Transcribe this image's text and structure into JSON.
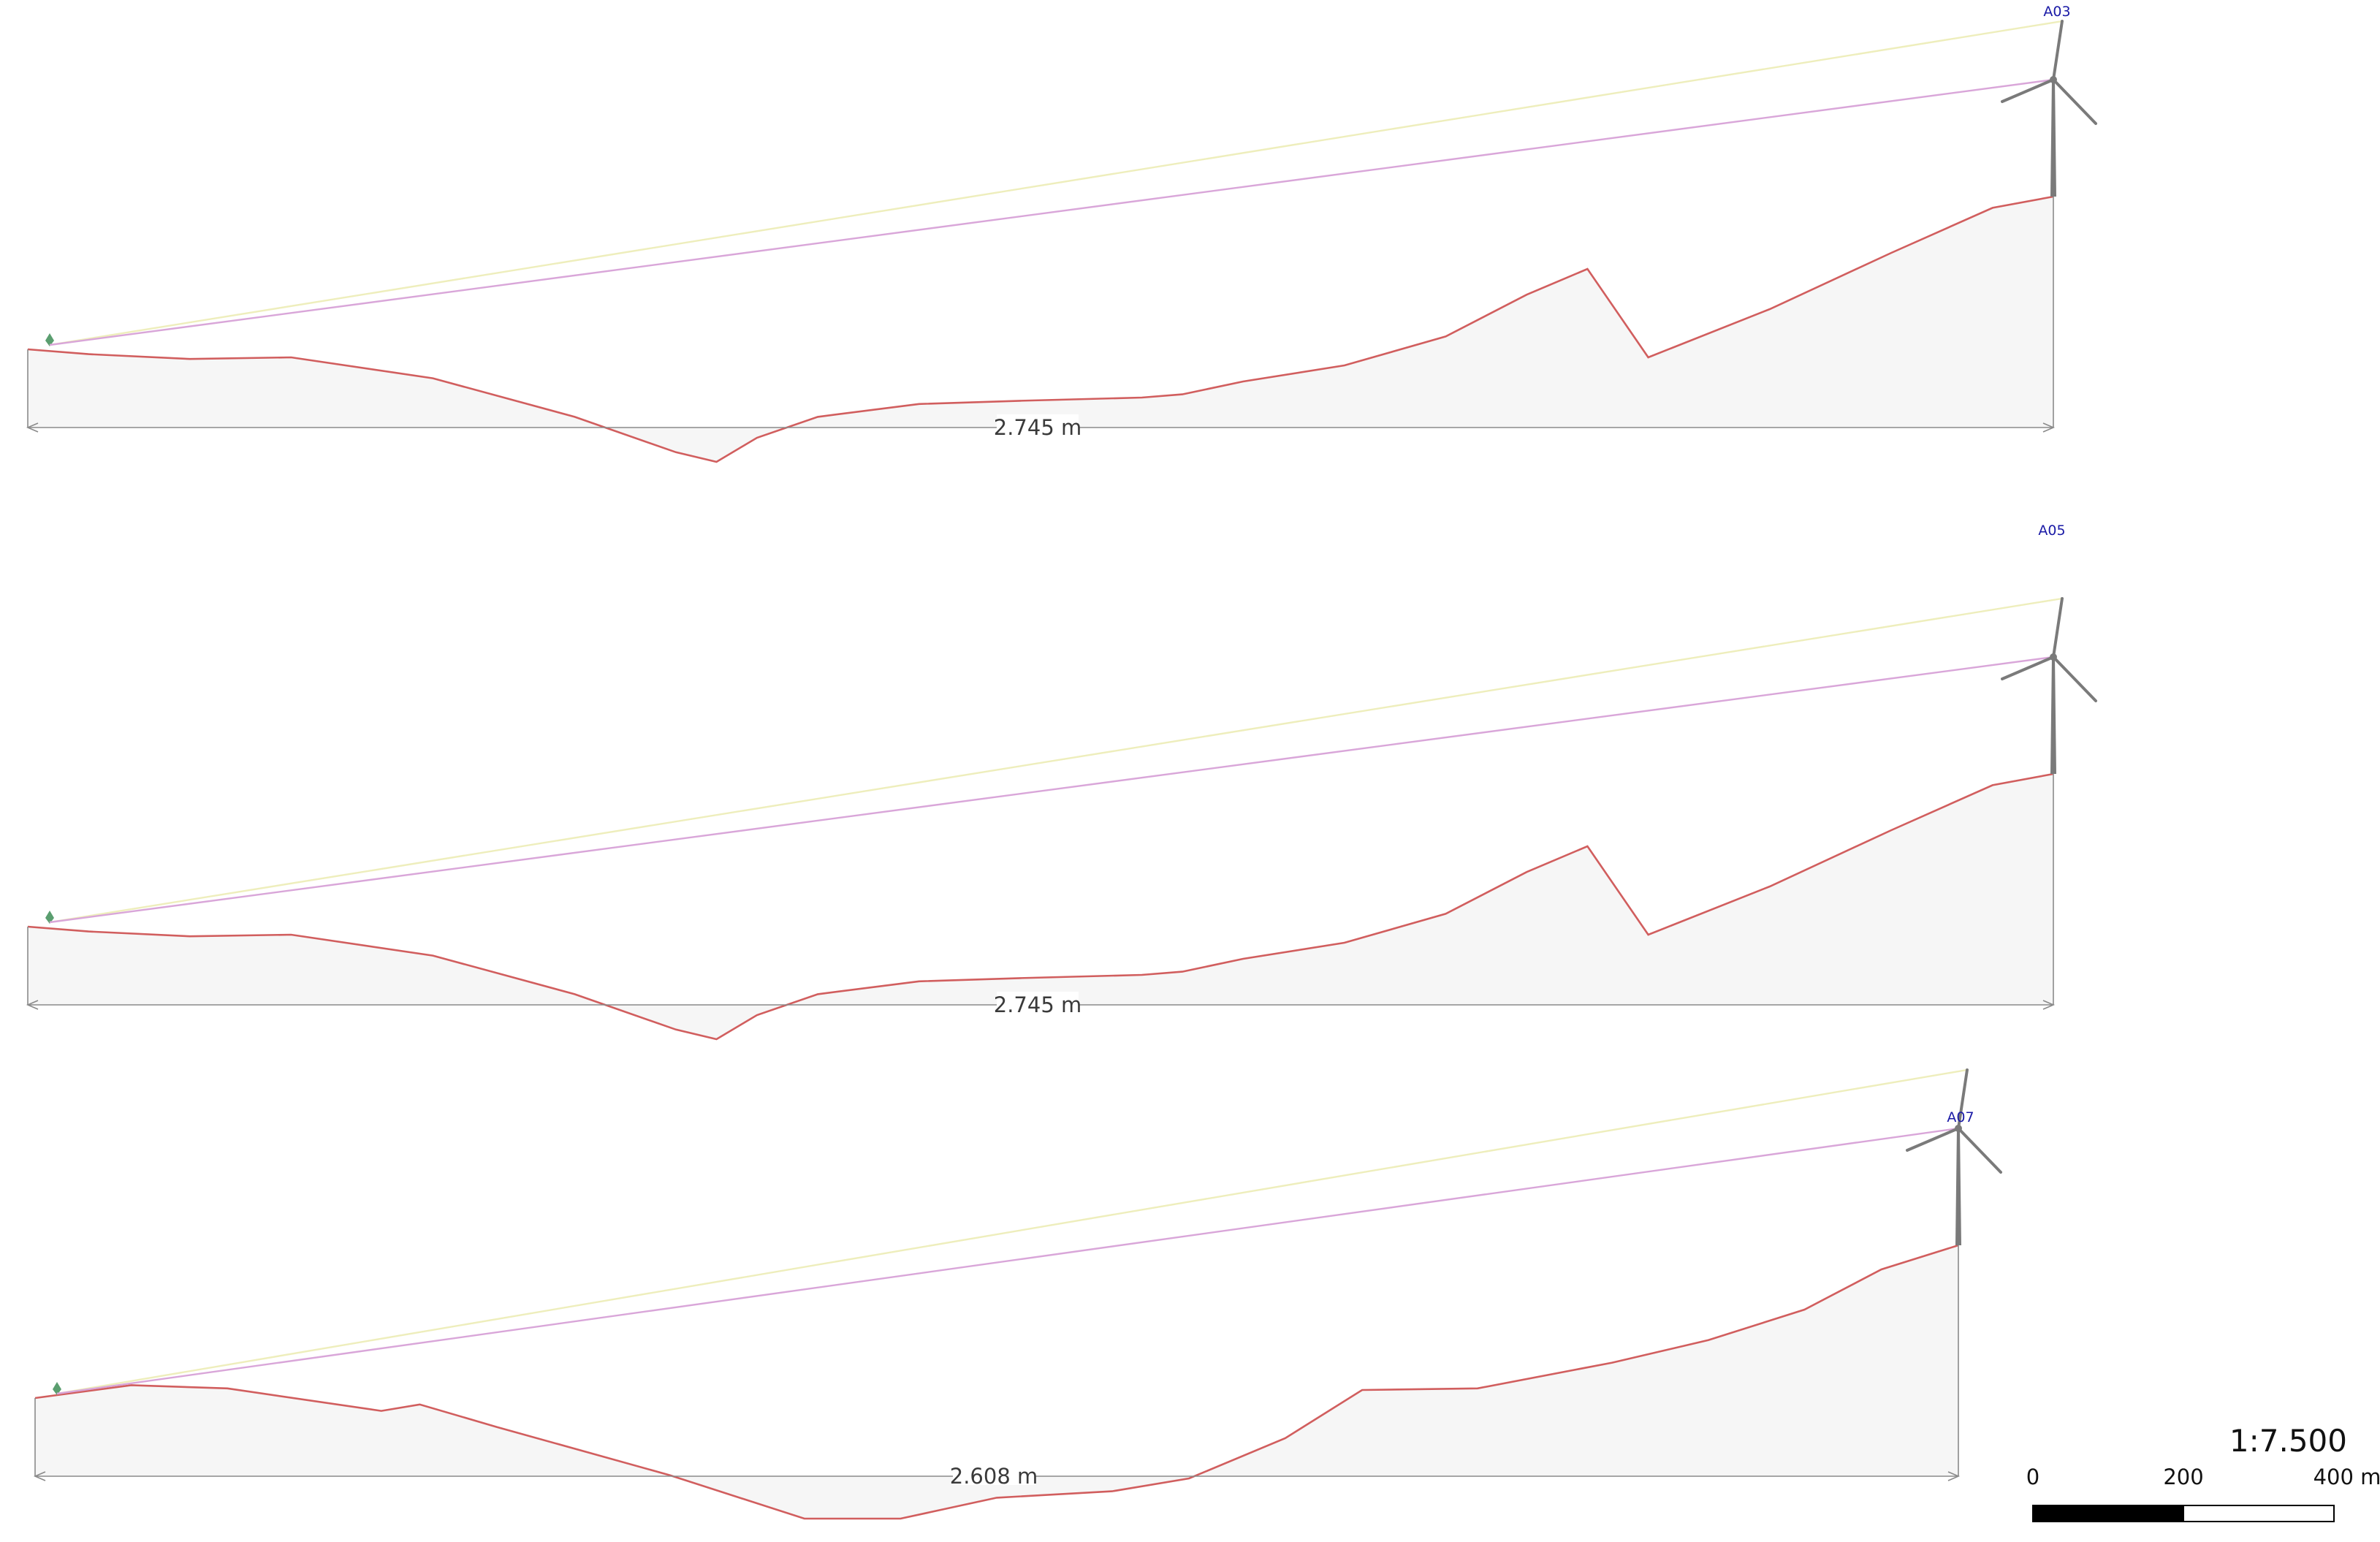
{
  "profiles": [
    {
      "turbine_label": "A03",
      "distance_label": "2.745 m",
      "terrain": [
        [
          0,
          0
        ],
        [
          0.03,
          -3
        ],
        [
          0.08,
          -6
        ],
        [
          0.13,
          -5
        ],
        [
          0.2,
          -18
        ],
        [
          0.27,
          -42
        ],
        [
          0.32,
          -64
        ],
        [
          0.34,
          -70
        ],
        [
          0.36,
          -55
        ],
        [
          0.39,
          -42
        ],
        [
          0.44,
          -34
        ],
        [
          0.49,
          -32
        ],
        [
          0.55,
          -30
        ],
        [
          0.57,
          -28
        ],
        [
          0.6,
          -20
        ],
        [
          0.65,
          -10
        ],
        [
          0.7,
          8
        ],
        [
          0.74,
          34
        ],
        [
          0.77,
          50
        ],
        [
          0.8,
          -5
        ],
        [
          0.86,
          25
        ],
        [
          0.92,
          60
        ],
        [
          0.97,
          88
        ],
        [
          1.0,
          95
        ]
      ]
    },
    {
      "turbine_label": "A05",
      "distance_label": "2.745 m",
      "terrain": [
        [
          0,
          0
        ],
        [
          0.03,
          -3
        ],
        [
          0.08,
          -6
        ],
        [
          0.13,
          -5
        ],
        [
          0.2,
          -18
        ],
        [
          0.27,
          -42
        ],
        [
          0.32,
          -64
        ],
        [
          0.34,
          -70
        ],
        [
          0.36,
          -55
        ],
        [
          0.39,
          -42
        ],
        [
          0.44,
          -34
        ],
        [
          0.49,
          -32
        ],
        [
          0.55,
          -30
        ],
        [
          0.57,
          -28
        ],
        [
          0.6,
          -20
        ],
        [
          0.65,
          -10
        ],
        [
          0.7,
          8
        ],
        [
          0.74,
          34
        ],
        [
          0.77,
          50
        ],
        [
          0.8,
          -5
        ],
        [
          0.86,
          25
        ],
        [
          0.92,
          60
        ],
        [
          0.97,
          88
        ],
        [
          1.0,
          95
        ]
      ]
    },
    {
      "turbine_label": "A07",
      "distance_label": "2.608 m",
      "terrain": [
        [
          0,
          0
        ],
        [
          0.05,
          8
        ],
        [
          0.1,
          6
        ],
        [
          0.18,
          -8
        ],
        [
          0.2,
          -4
        ],
        [
          0.24,
          -18
        ],
        [
          0.33,
          -48
        ],
        [
          0.4,
          -75
        ],
        [
          0.45,
          -75
        ],
        [
          0.5,
          -62
        ],
        [
          0.56,
          -58
        ],
        [
          0.6,
          -50
        ],
        [
          0.65,
          -25
        ],
        [
          0.69,
          5
        ],
        [
          0.75,
          6
        ],
        [
          0.82,
          22
        ],
        [
          0.87,
          36
        ],
        [
          0.92,
          55
        ],
        [
          0.96,
          80
        ],
        [
          1.0,
          95
        ]
      ]
    }
  ],
  "legend_colors": {
    "terrain_line": "#d15e5e",
    "terrain_fill": "#f6f6f6",
    "sight_line_hub": "#d9a6d9",
    "sight_line_tip": "#eeeebc",
    "observer_marker": "#5a9e6f",
    "turbine": "#7a7a7a",
    "dimension_line": "#8a8a8a",
    "turbine_label_color": "#1a1aa6"
  },
  "scale_bar": {
    "ratio": "1:7.500",
    "tick_labels": [
      "0",
      "200",
      "400 m"
    ],
    "segments": 2
  }
}
